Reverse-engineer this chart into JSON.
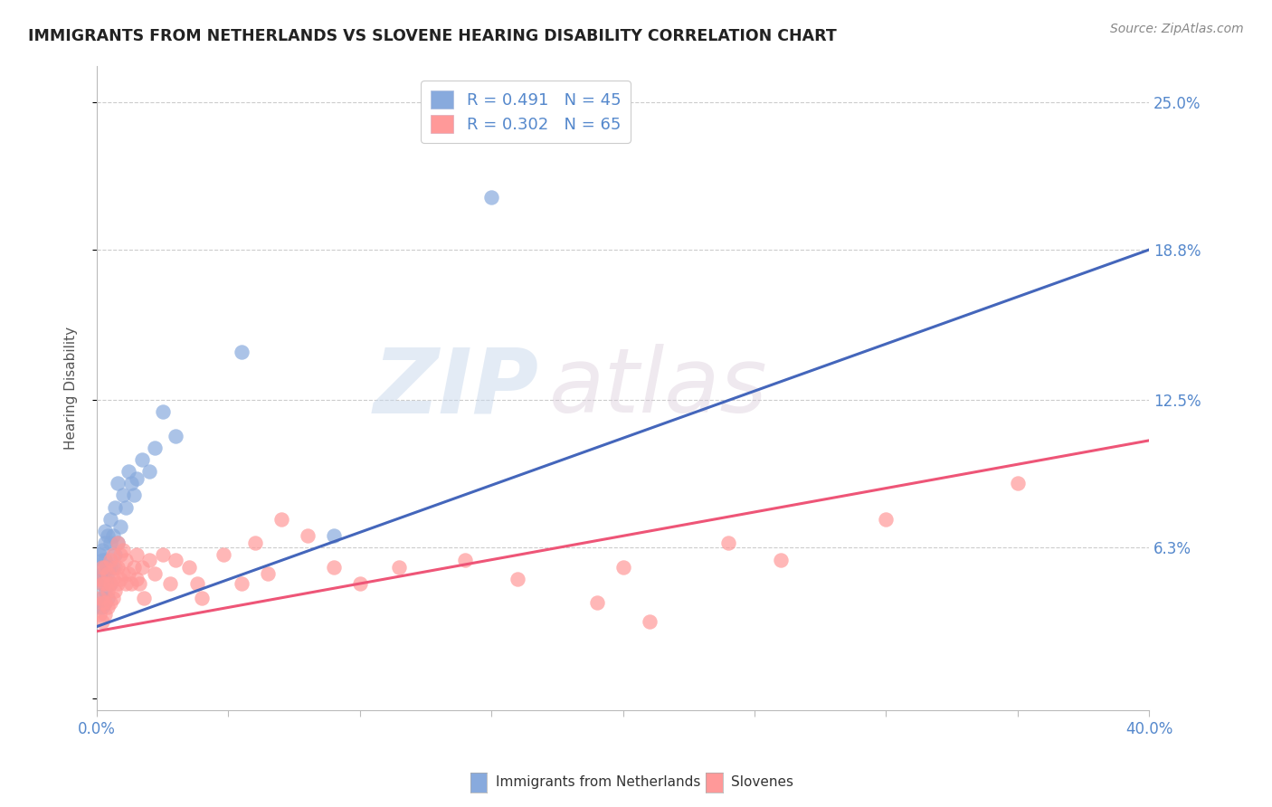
{
  "title": "IMMIGRANTS FROM NETHERLANDS VS SLOVENE HEARING DISABILITY CORRELATION CHART",
  "source": "Source: ZipAtlas.com",
  "ylabel": "Hearing Disability",
  "y_ticks": [
    0.0,
    0.063,
    0.125,
    0.188,
    0.25
  ],
  "y_tick_labels": [
    "",
    "6.3%",
    "12.5%",
    "18.8%",
    "25.0%"
  ],
  "x_range": [
    0.0,
    0.4
  ],
  "y_range": [
    -0.005,
    0.265
  ],
  "color_blue": "#88AADD",
  "color_pink": "#FF9999",
  "line_blue": "#4466BB",
  "line_pink": "#EE5577",
  "watermark_zip": "ZIP",
  "watermark_atlas": "atlas",
  "blue_intercept": 0.03,
  "blue_slope": 0.395,
  "pink_intercept": 0.028,
  "pink_slope": 0.2,
  "blue_x": [
    0.001,
    0.001,
    0.001,
    0.001,
    0.002,
    0.002,
    0.002,
    0.002,
    0.002,
    0.002,
    0.003,
    0.003,
    0.003,
    0.003,
    0.003,
    0.003,
    0.004,
    0.004,
    0.004,
    0.004,
    0.005,
    0.005,
    0.005,
    0.005,
    0.006,
    0.006,
    0.007,
    0.007,
    0.008,
    0.008,
    0.009,
    0.01,
    0.011,
    0.012,
    0.013,
    0.014,
    0.015,
    0.017,
    0.02,
    0.022,
    0.025,
    0.03,
    0.055,
    0.09,
    0.15
  ],
  "blue_y": [
    0.038,
    0.05,
    0.055,
    0.06,
    0.038,
    0.042,
    0.048,
    0.052,
    0.058,
    0.062,
    0.04,
    0.045,
    0.05,
    0.058,
    0.065,
    0.07,
    0.042,
    0.05,
    0.055,
    0.068,
    0.048,
    0.055,
    0.065,
    0.075,
    0.055,
    0.068,
    0.06,
    0.08,
    0.065,
    0.09,
    0.072,
    0.085,
    0.08,
    0.095,
    0.09,
    0.085,
    0.092,
    0.1,
    0.095,
    0.105,
    0.12,
    0.11,
    0.145,
    0.068,
    0.21
  ],
  "pink_x": [
    0.001,
    0.001,
    0.001,
    0.002,
    0.002,
    0.002,
    0.002,
    0.003,
    0.003,
    0.003,
    0.003,
    0.004,
    0.004,
    0.004,
    0.005,
    0.005,
    0.005,
    0.006,
    0.006,
    0.006,
    0.007,
    0.007,
    0.008,
    0.008,
    0.008,
    0.009,
    0.009,
    0.01,
    0.01,
    0.011,
    0.011,
    0.012,
    0.013,
    0.014,
    0.015,
    0.015,
    0.016,
    0.017,
    0.018,
    0.02,
    0.022,
    0.025,
    0.028,
    0.03,
    0.035,
    0.038,
    0.04,
    0.048,
    0.055,
    0.06,
    0.065,
    0.07,
    0.08,
    0.09,
    0.1,
    0.115,
    0.14,
    0.16,
    0.19,
    0.2,
    0.21,
    0.24,
    0.26,
    0.3,
    0.35
  ],
  "pink_y": [
    0.035,
    0.042,
    0.05,
    0.032,
    0.04,
    0.048,
    0.055,
    0.035,
    0.04,
    0.048,
    0.055,
    0.038,
    0.045,
    0.052,
    0.04,
    0.048,
    0.058,
    0.042,
    0.05,
    0.06,
    0.045,
    0.055,
    0.048,
    0.055,
    0.065,
    0.05,
    0.06,
    0.052,
    0.062,
    0.048,
    0.058,
    0.052,
    0.048,
    0.055,
    0.05,
    0.06,
    0.048,
    0.055,
    0.042,
    0.058,
    0.052,
    0.06,
    0.048,
    0.058,
    0.055,
    0.048,
    0.042,
    0.06,
    0.048,
    0.065,
    0.052,
    0.075,
    0.068,
    0.055,
    0.048,
    0.055,
    0.058,
    0.05,
    0.04,
    0.055,
    0.032,
    0.065,
    0.058,
    0.075,
    0.09
  ]
}
